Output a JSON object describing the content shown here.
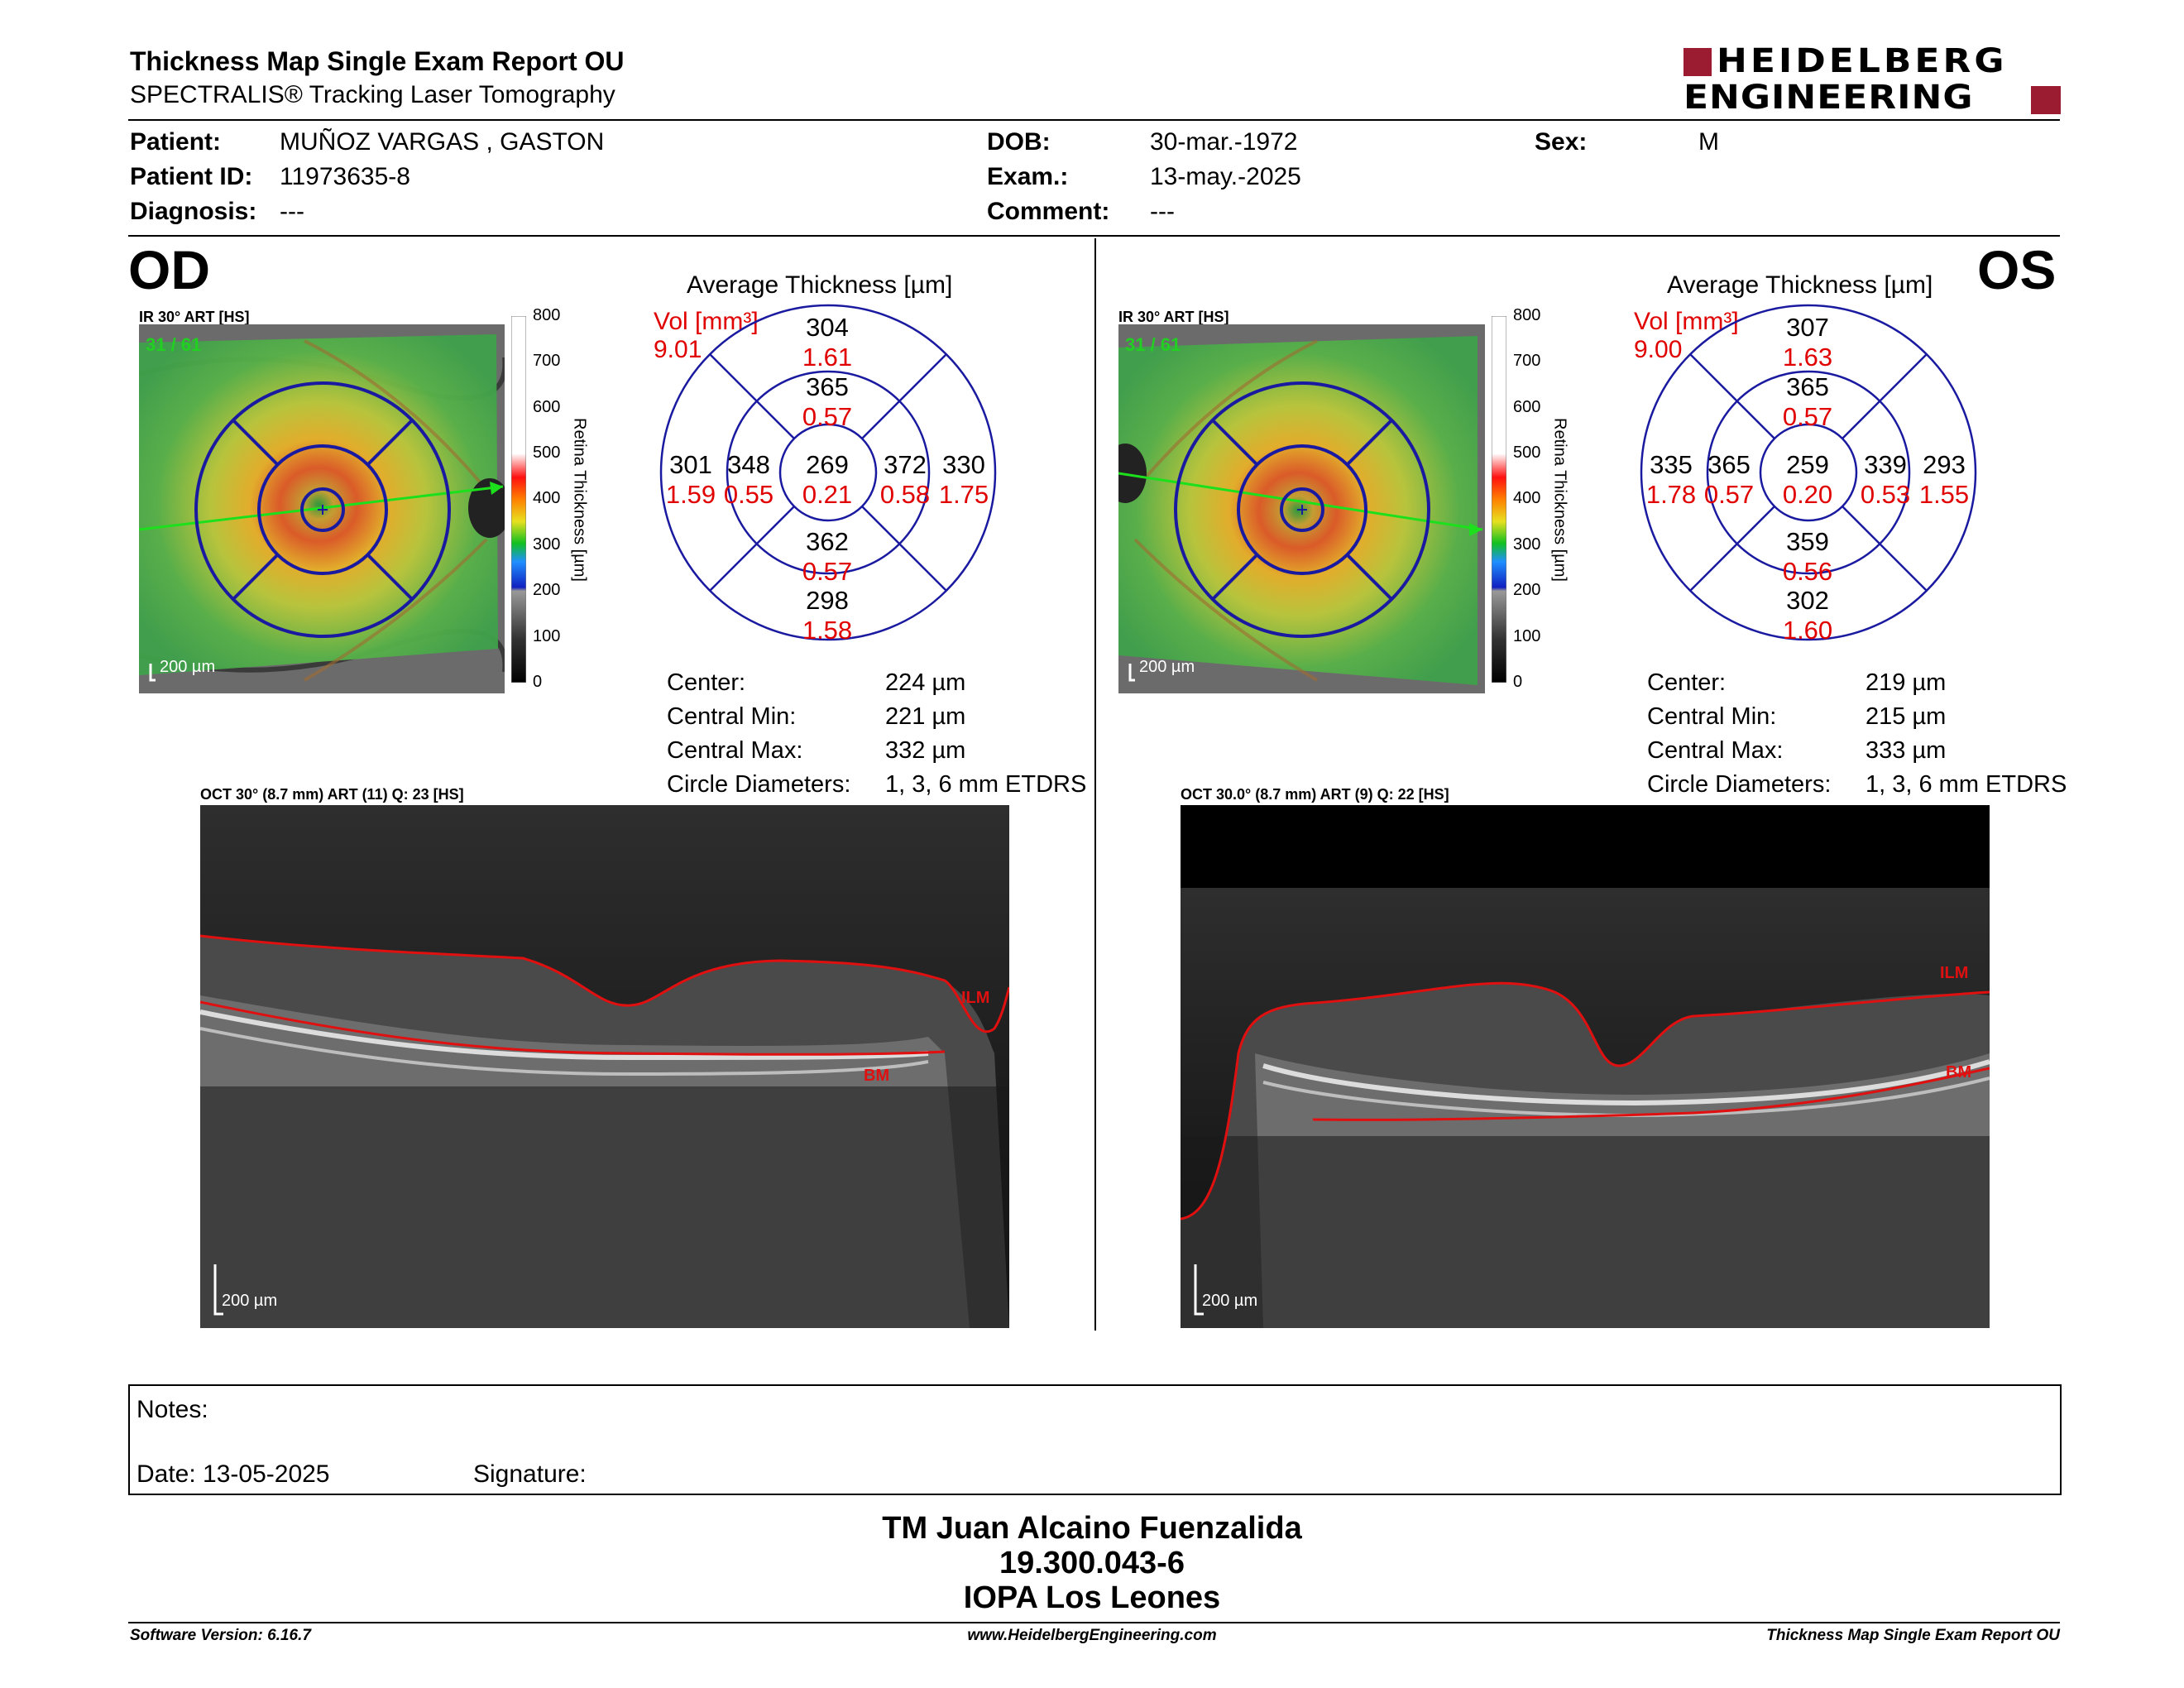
{
  "header": {
    "title": "Thickness Map Single Exam Report OU",
    "subtitle": "SPECTRALIS® Tracking Laser Tomography",
    "brand_line1": "HEIDELBERG",
    "brand_line2": "ENGINEERING"
  },
  "patient": {
    "patient_label": "Patient:",
    "patient_value": "MUÑOZ VARGAS , GASTON",
    "id_label": "Patient ID:",
    "id_value": "11973635-8",
    "diagnosis_label": "Diagnosis:",
    "diagnosis_value": "---",
    "dob_label": "DOB:",
    "dob_value": "30-mar.-1972",
    "exam_label": "Exam.:",
    "exam_value": "13-may.-2025",
    "comment_label": "Comment:",
    "comment_value": "---",
    "sex_label": "Sex:",
    "sex_value": "M"
  },
  "colorbar": {
    "ticks": [
      "800",
      "700",
      "600",
      "500",
      "400",
      "300",
      "200",
      "100",
      "0"
    ],
    "title": "Retina Thickness [µm]"
  },
  "od": {
    "eye": "OD",
    "ir_label": "IR 30° ART [HS]",
    "ir_quality": "31 / 61",
    "scale": "200 µm",
    "avg_title": "Average Thickness [µm]",
    "vol_label": "Vol [mm³]",
    "vol_value": "9.01",
    "sectors": {
      "outer_top": {
        "t": "304",
        "v": "1.61"
      },
      "inner_top": {
        "t": "365",
        "v": "0.57"
      },
      "outer_left": {
        "t": "301",
        "v": "1.59"
      },
      "inner_left": {
        "t": "348",
        "v": "0.55"
      },
      "center": {
        "t": "269",
        "v": "0.21"
      },
      "inner_right": {
        "t": "372",
        "v": "0.58"
      },
      "outer_right": {
        "t": "330",
        "v": "1.75"
      },
      "inner_bottom": {
        "t": "362",
        "v": "0.57"
      },
      "outer_bottom": {
        "t": "298",
        "v": "1.58"
      }
    },
    "stats": [
      {
        "label": "Center:",
        "value": "224 µm"
      },
      {
        "label": "Central Min:",
        "value": "221 µm"
      },
      {
        "label": "Central Max:",
        "value": "332 µm"
      },
      {
        "label": "Circle Diameters:",
        "value": "1, 3, 6 mm ETDRS"
      }
    ],
    "oct_label": "OCT 30° (8.7 mm) ART (11) Q: 23 [HS]",
    "oct_scale": "200 µm",
    "ilm": "ILM",
    "bm": "BM"
  },
  "os": {
    "eye": "OS",
    "ir_label": "IR 30° ART [HS]",
    "ir_quality": "31 / 61",
    "scale": "200 µm",
    "avg_title": "Average Thickness [µm]",
    "vol_label": "Vol [mm³]",
    "vol_value": "9.00",
    "sectors": {
      "outer_top": {
        "t": "307",
        "v": "1.63"
      },
      "inner_top": {
        "t": "365",
        "v": "0.57"
      },
      "outer_left": {
        "t": "335",
        "v": "1.78"
      },
      "inner_left": {
        "t": "365",
        "v": "0.57"
      },
      "center": {
        "t": "259",
        "v": "0.20"
      },
      "inner_right": {
        "t": "339",
        "v": "0.53"
      },
      "outer_right": {
        "t": "293",
        "v": "1.55"
      },
      "inner_bottom": {
        "t": "359",
        "v": "0.56"
      },
      "outer_bottom": {
        "t": "302",
        "v": "1.60"
      }
    },
    "stats": [
      {
        "label": "Center:",
        "value": "219 µm"
      },
      {
        "label": "Central Min:",
        "value": "215 µm"
      },
      {
        "label": "Central Max:",
        "value": "333 µm"
      },
      {
        "label": "Circle Diameters:",
        "value": "1, 3, 6 mm ETDRS"
      }
    ],
    "oct_label": "OCT 30.0° (8.7 mm) ART (9) Q: 22 [HS]",
    "oct_scale": "200 µm",
    "ilm": "ILM",
    "bm": "BM"
  },
  "notes": {
    "notes_label": "Notes:",
    "date_label": "Date: 13-05-2025",
    "signature_label": "Signature:"
  },
  "signer": {
    "name": "TM Juan Alcaino Fuenzalida",
    "id": "19.300.043-6",
    "place": "IOPA Los Leones"
  },
  "footer": {
    "software": "Software Version: 6.16.7",
    "website": "www.HeidelbergEngineering.com",
    "report": "Thickness Map Single Exam Report OU"
  },
  "colors": {
    "etdrs_grid": "#1a1aa0",
    "red_text": "#e00000",
    "brand_red": "#9b1b30"
  }
}
